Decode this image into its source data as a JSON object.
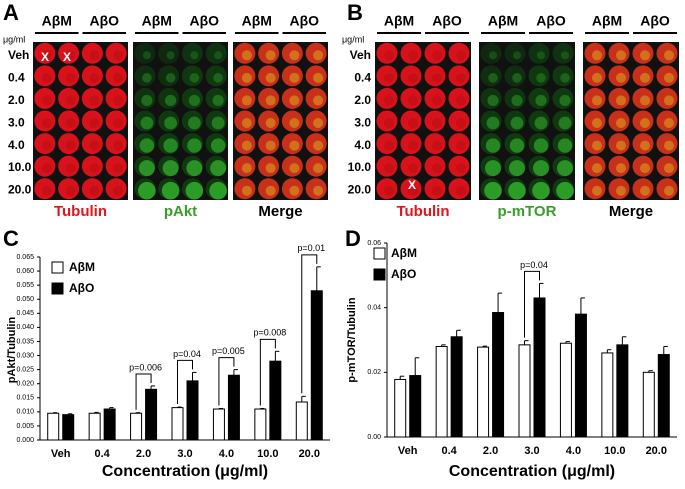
{
  "panel_a": {
    "label": "A",
    "unit": "μg/ml",
    "groups": [
      "AβM",
      "AβO"
    ],
    "rows": [
      "Veh",
      "0.4",
      "2.0",
      "3.0",
      "4.0",
      "10.0",
      "20.0"
    ],
    "marks": [
      "X",
      "X"
    ],
    "channels": [
      "Tubulin",
      "pAkt",
      "Merge"
    ],
    "channel_colors": [
      "#e5141c",
      "#3a9e2a",
      "#000000"
    ]
  },
  "panel_b": {
    "label": "B",
    "unit": "μg/ml",
    "groups": [
      "AβM",
      "AβO"
    ],
    "rows": [
      "Veh",
      "0.4",
      "2.0",
      "3.0",
      "4.0",
      "10.0",
      "20.0"
    ],
    "marks": [
      "X"
    ],
    "channels": [
      "Tubulin",
      "p-mTOR",
      "Merge"
    ],
    "channel_colors": [
      "#e5141c",
      "#3a9e2a",
      "#000000"
    ]
  },
  "chart_data": [
    {
      "type": "bar",
      "panel_label": "C",
      "ylabel": "pAkt/Tubulin",
      "xlabel": "Concentration (μg/ml)",
      "categories": [
        "Veh",
        "0.4",
        "2.0",
        "3.0",
        "4.0",
        "10.0",
        "20.0"
      ],
      "series": [
        {
          "name": "AβM",
          "color": "#ffffff",
          "values": [
            0.0095,
            0.0095,
            0.0095,
            0.0115,
            0.011,
            0.011,
            0.0135
          ],
          "errors": [
            0.0002,
            0.0003,
            0.0002,
            0.0002,
            0.0002,
            0.0002,
            0.002
          ]
        },
        {
          "name": "AβO",
          "color": "#000000",
          "values": [
            0.009,
            0.011,
            0.018,
            0.021,
            0.023,
            0.028,
            0.053
          ],
          "errors": [
            0.0003,
            0.0005,
            0.0012,
            0.003,
            0.002,
            0.0035,
            0.0085
          ]
        }
      ],
      "p_values": [
        null,
        null,
        "p=0.006",
        "p=0.04",
        "p=0.005",
        "p=0.008",
        "p=0.01"
      ],
      "ylim": [
        0,
        0.065
      ],
      "yticks": [
        {
          "value": 0,
          "label": "0.000"
        },
        {
          "value": 0.005,
          "label": "0.005"
        },
        {
          "value": 0.01,
          "label": "0.010"
        },
        {
          "value": 0.015,
          "label": "0.015"
        },
        {
          "value": 0.02,
          "label": "0.020"
        },
        {
          "value": 0.025,
          "label": "0.025"
        },
        {
          "value": 0.03,
          "label": "0.030"
        },
        {
          "value": 0.035,
          "label": "0.035"
        },
        {
          "value": 0.04,
          "label": "0.040"
        },
        {
          "value": 0.045,
          "label": "0.045"
        },
        {
          "value": 0.05,
          "label": "0.050"
        },
        {
          "value": 0.055,
          "label": "0.055"
        },
        {
          "value": 0.06,
          "label": "0.060"
        },
        {
          "value": 0.065,
          "label": "0.065"
        }
      ],
      "legend": "upper left",
      "grid": false
    },
    {
      "type": "bar",
      "panel_label": "D",
      "ylabel": "p-mTOR/Tubulin",
      "xlabel": "Concentration (μg/ml)",
      "categories": [
        "Veh",
        "0.4",
        "2.0",
        "3.0",
        "4.0",
        "10.0",
        "20.0"
      ],
      "series": [
        {
          "name": "AβM",
          "color": "#ffffff",
          "values": [
            0.0178,
            0.028,
            0.0278,
            0.0285,
            0.029,
            0.026,
            0.02
          ],
          "errors": [
            0.001,
            0.0005,
            0.0003,
            0.0013,
            0.0005,
            0.001,
            0.0005
          ]
        },
        {
          "name": "AβO",
          "color": "#000000",
          "values": [
            0.019,
            0.031,
            0.0385,
            0.043,
            0.038,
            0.0285,
            0.0255
          ],
          "errors": [
            0.0055,
            0.002,
            0.006,
            0.0045,
            0.005,
            0.0025,
            0.0025
          ]
        }
      ],
      "p_values": [
        null,
        null,
        null,
        "p=0.04",
        null,
        null,
        null
      ],
      "ylim": [
        0,
        0.06
      ],
      "yticks": [
        {
          "value": 0,
          "label": "0.00"
        },
        {
          "value": 0.02,
          "label": "0.02"
        },
        {
          "value": 0.04,
          "label": "0.04"
        },
        {
          "value": 0.06,
          "label": "0.06"
        }
      ],
      "legend": "upper left",
      "grid": false
    }
  ]
}
